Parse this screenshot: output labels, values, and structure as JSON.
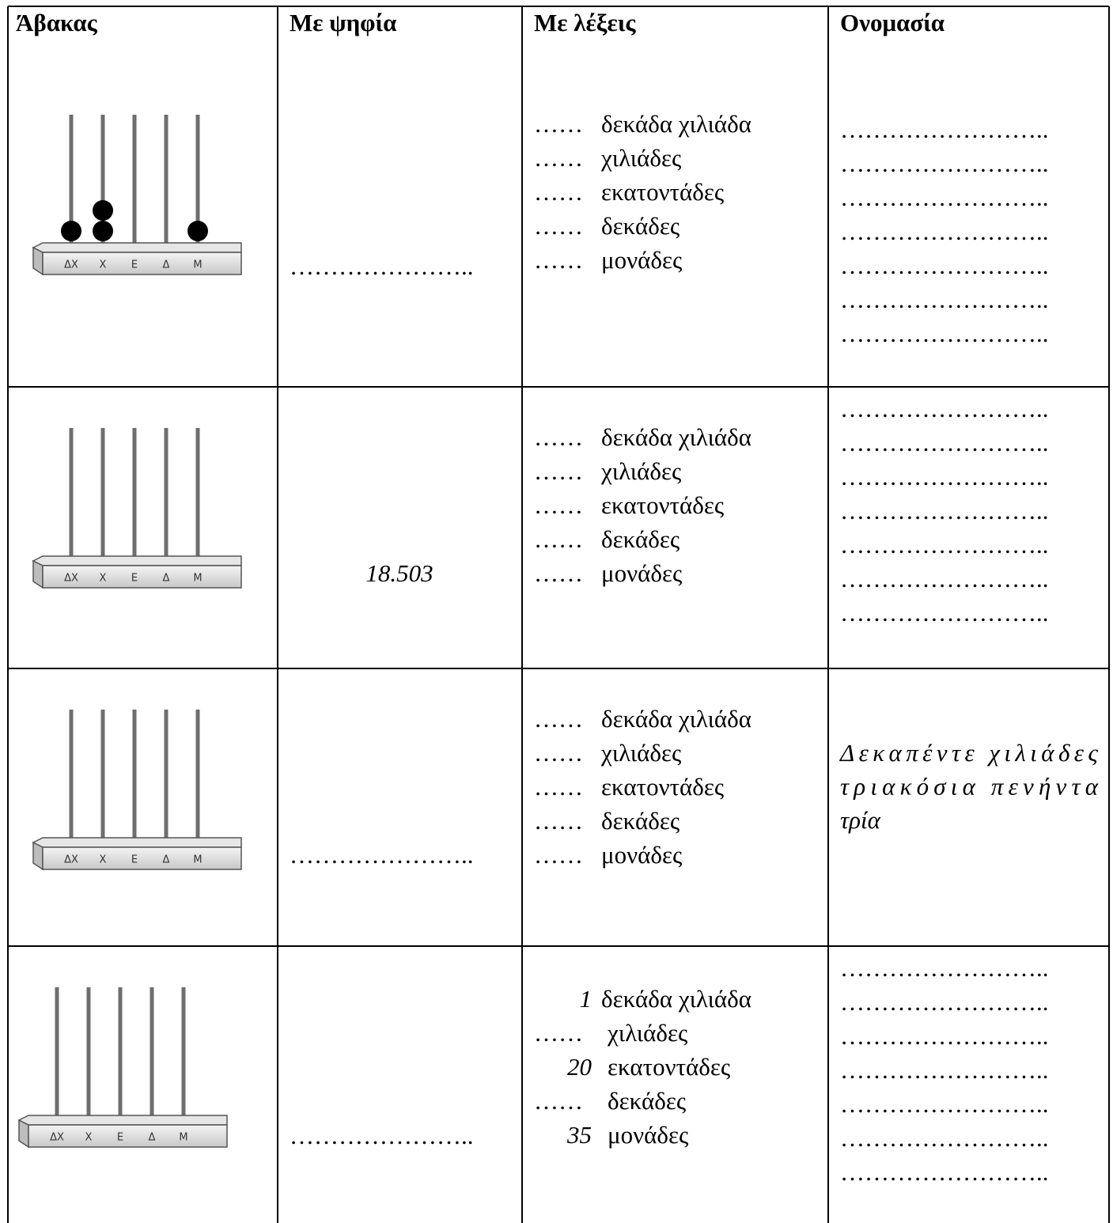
{
  "table": {
    "headers": [
      "Άβακας",
      "Με ψηφία",
      "Με λέξεις",
      "Ονομασία"
    ],
    "abacus_labels": [
      "ΔΧ",
      "Χ",
      "Ε",
      "Δ",
      "Μ"
    ],
    "rows": [
      {
        "beads": [
          1,
          2,
          0,
          0,
          1
        ],
        "digits": "…………………..",
        "words": [
          [
            "……",
            "δεκάδα χιλιάδα"
          ],
          [
            "……",
            "χιλιάδες"
          ],
          [
            "……",
            "εκατοντάδες"
          ],
          [
            "……",
            "δεκάδες"
          ],
          [
            "……",
            "μονάδες"
          ]
        ],
        "name": [
          "……………………..",
          "……………………..",
          "……………………..",
          "……………………..",
          "……………………..",
          "……………………..",
          "…………………….."
        ]
      },
      {
        "beads": [
          0,
          0,
          0,
          0,
          0
        ],
        "digits": "18.503",
        "words": [
          [
            "……",
            "δεκάδα χιλιάδα"
          ],
          [
            "……",
            "χιλιάδες"
          ],
          [
            "……",
            "εκατοντάδες"
          ],
          [
            "……",
            "δεκάδες"
          ],
          [
            "……",
            "μονάδες"
          ]
        ],
        "name": [
          "……………………..",
          "……………………..",
          "……………………..",
          "……………………..",
          "……………………..",
          "……………………..",
          "…………………….."
        ]
      },
      {
        "beads": [
          0,
          0,
          0,
          0,
          0
        ],
        "digits": "…………………..",
        "words": [
          [
            "……",
            "δεκάδα χιλιάδα"
          ],
          [
            "……",
            "χιλιάδες"
          ],
          [
            "……",
            "εκατοντάδες"
          ],
          [
            "……",
            "δεκάδες"
          ],
          [
            "……",
            "μονάδες"
          ]
        ],
        "name": [
          "Δεκαπέντε χιλιάδες",
          "τριακόσια πενήντα",
          "τρία"
        ]
      },
      {
        "beads": [
          0,
          0,
          0,
          0,
          0
        ],
        "digits": "…………………..",
        "words": [
          [
            "1",
            "δεκάδα χιλιάδα"
          ],
          [
            "……",
            "χιλιάδες"
          ],
          [
            "20",
            "εκατοντάδες"
          ],
          [
            "……",
            "δεκάδες"
          ],
          [
            "35",
            "μονάδες"
          ]
        ],
        "name": [
          "……………………..",
          "……………………..",
          "……………………..",
          "……………………..",
          "……………………..",
          "……………………..",
          "…………………….."
        ]
      }
    ]
  }
}
